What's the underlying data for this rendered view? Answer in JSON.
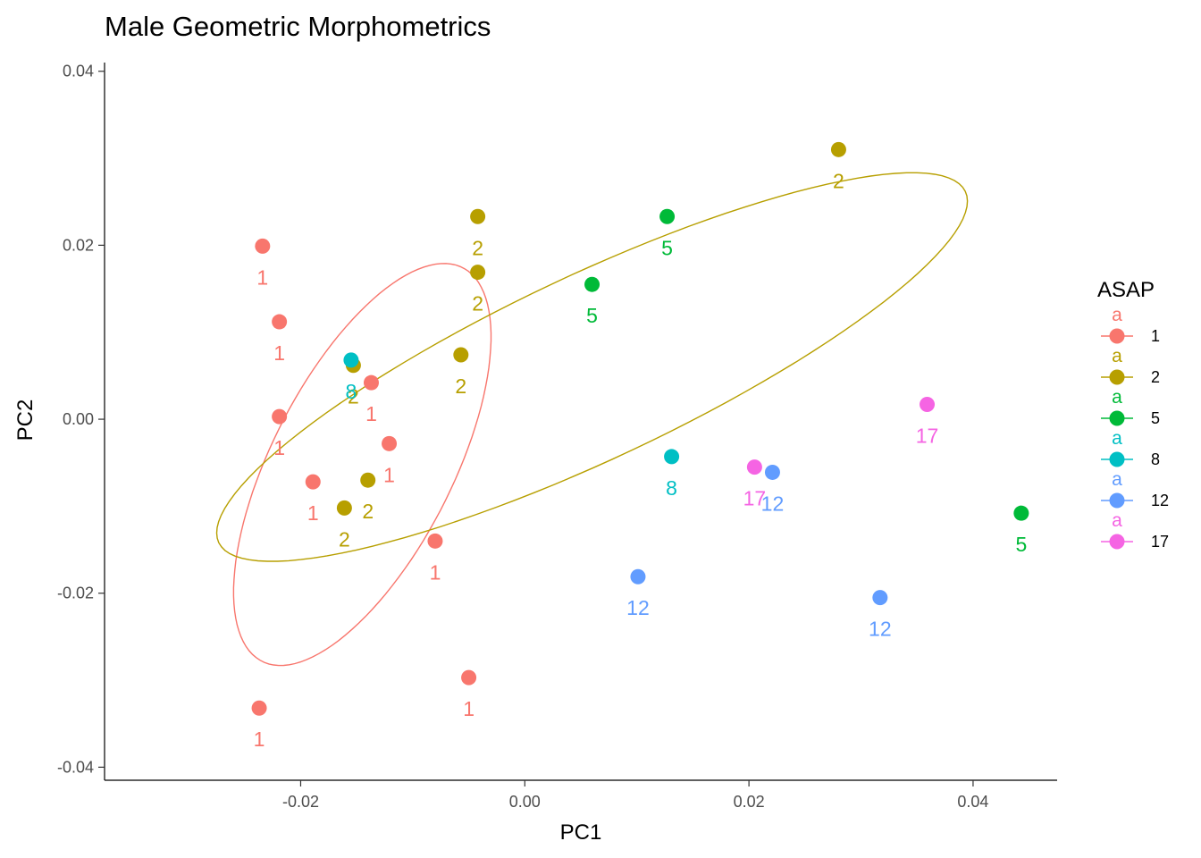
{
  "chart_data": {
    "type": "scatter",
    "title": "Male Geometric Morphometrics",
    "xlabel": "PC1",
    "ylabel": "PC2",
    "xlim": [
      -0.0375,
      0.0475
    ],
    "ylim": [
      -0.0415,
      0.041
    ],
    "xticks": [
      -0.02,
      0.0,
      0.02,
      0.04
    ],
    "xtick_labels": [
      "-0.02",
      "0.00",
      "0.02",
      "0.04"
    ],
    "yticks": [
      -0.04,
      -0.02,
      0.0,
      0.02,
      0.04
    ],
    "ytick_labels": [
      "-0.04",
      "-0.02",
      "0.00",
      "0.02",
      "0.04"
    ],
    "grid": false,
    "legend": {
      "title": "ASAP",
      "placement": "right",
      "key_text": "a",
      "entries": [
        "1",
        "2",
        "5",
        "8",
        "12",
        "17"
      ]
    },
    "series": [
      {
        "name": "1",
        "color": "#F8766D",
        "x": [
          -0.0234,
          -0.0219,
          -0.0219,
          -0.0189,
          -0.0137,
          -0.0121,
          -0.008,
          -0.005,
          -0.0237
        ],
        "y": [
          0.0199,
          0.0112,
          0.0003,
          -0.0072,
          0.0042,
          -0.0028,
          -0.014,
          -0.0297,
          -0.0332
        ],
        "labels": [
          "1",
          "1",
          "1",
          "1",
          "1",
          "1",
          "1",
          "1",
          "1"
        ]
      },
      {
        "name": "2",
        "color": "#B79F00",
        "x": [
          -0.0042,
          -0.0042,
          -0.0057,
          -0.0153,
          -0.014,
          -0.0161,
          0.028
        ],
        "y": [
          0.0233,
          0.0169,
          0.0074,
          0.0062,
          -0.007,
          -0.0102,
          0.031
        ],
        "labels": [
          "2",
          "2",
          "2",
          "2",
          "2",
          "2",
          "2"
        ]
      },
      {
        "name": "5",
        "color": "#00BA38",
        "x": [
          0.0127,
          0.006,
          0.0443
        ],
        "y": [
          0.0233,
          0.0155,
          -0.0108
        ],
        "labels": [
          "5",
          "5",
          "5"
        ]
      },
      {
        "name": "8",
        "color": "#00BFC4",
        "x": [
          -0.0155,
          0.0131
        ],
        "y": [
          0.0068,
          -0.0043
        ],
        "labels": [
          "8",
          "8"
        ]
      },
      {
        "name": "12",
        "color": "#619CFF",
        "x": [
          0.0221,
          0.0101,
          0.0317
        ],
        "y": [
          -0.0061,
          -0.0181,
          -0.0205
        ],
        "labels": [
          "12",
          "12",
          "12"
        ]
      },
      {
        "name": "17",
        "color": "#F564E3",
        "x": [
          0.0205,
          0.0359
        ],
        "y": [
          -0.0055,
          0.0017
        ],
        "labels": [
          "17",
          "17"
        ]
      }
    ],
    "ellipses": [
      {
        "series": "1",
        "color": "#F8766D",
        "cx": -0.0145,
        "cy": -0.0052,
        "rx": 0.0244,
        "ry": 0.0084,
        "angle_deg": 70
      },
      {
        "series": "2",
        "color": "#B79F00",
        "cx": 0.006,
        "cy": 0.006,
        "rx": 0.039,
        "ry": 0.01,
        "angle_deg": 32
      }
    ]
  }
}
